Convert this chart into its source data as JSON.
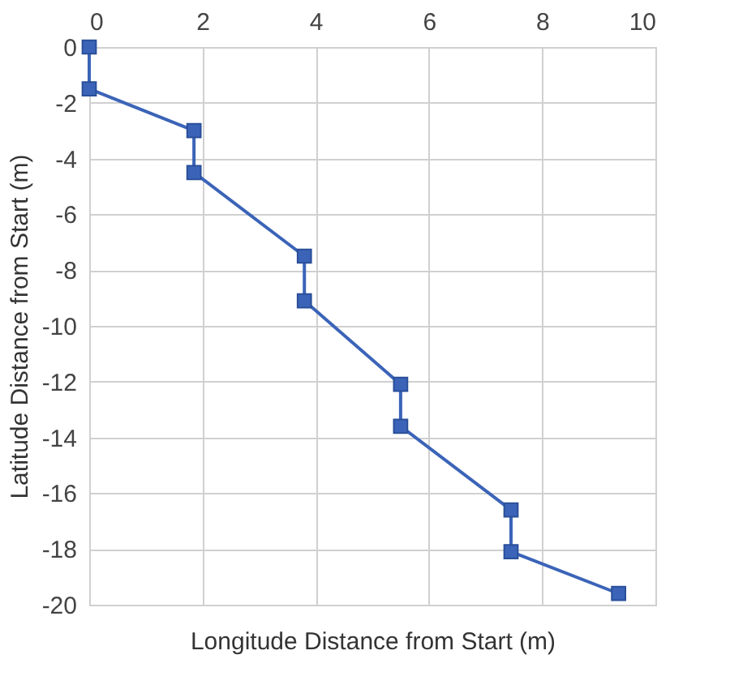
{
  "chart_data": {
    "type": "line",
    "xlabel": "Longitude Distance from Start (m)",
    "ylabel": "Latitude Distance from Start (m)",
    "series": [
      {
        "color": "#3b64b8",
        "x": [
          0,
          0,
          1.85,
          1.85,
          3.8,
          3.8,
          5.5,
          5.5,
          7.45,
          7.45,
          9.35
        ],
        "values": [
          0,
          -1.5,
          -3,
          -4.5,
          -7.5,
          -9.1,
          -12.1,
          -13.6,
          -16.6,
          -18.1,
          -19.6
        ]
      }
    ],
    "xlim": [
      0,
      10
    ],
    "xticks": [
      0,
      2,
      4,
      6,
      8,
      10
    ],
    "ylim": [
      -20,
      0
    ],
    "yticks": [
      0,
      -2,
      -4,
      -6,
      -8,
      -10,
      -12,
      -14,
      -16,
      -18,
      -20
    ],
    "grid": true,
    "marker": "square",
    "line_style": "solid"
  }
}
